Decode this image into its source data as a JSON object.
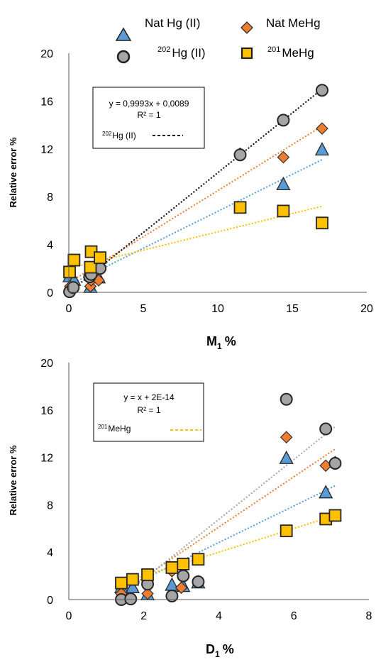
{
  "legend": {
    "nat_hg": "Nat Hg (II)",
    "nat_mehg": "Nat MeHg",
    "hg202_sup": "202",
    "hg202_rest": "Hg (II)",
    "mehg201_sup": "201",
    "mehg201_rest": "MeHg"
  },
  "colors": {
    "nat_hg": "#5b9bd5",
    "nat_mehg": "#ed7d31",
    "hg202": "#a5a5a5",
    "mehg201": "#ffc000",
    "trend_hg202": "#000000",
    "trend_hg202_bottom": "#a5a5a5"
  },
  "chart_data": [
    {
      "type": "scatter",
      "ylabel": "Relative error %",
      "xlabel_main": "M",
      "xlabel_sub": "1",
      "xlabel_unit": "%",
      "xlim": [
        0,
        20
      ],
      "ylim": [
        0,
        20
      ],
      "xticks": [
        "0",
        "5",
        "10",
        "15",
        "20"
      ],
      "yticks": [
        "0",
        "4",
        "8",
        "12",
        "16",
        "20"
      ],
      "annotation": {
        "line1": "y = 0,9993x + 0,0089",
        "line2": "R² = 1",
        "series_sup": "202",
        "series_rest": "Hg (II)"
      },
      "series": [
        {
          "name": "Nat Hg (II)",
          "marker": "triangle",
          "points": [
            [
              0.05,
              1.3
            ],
            [
              0.35,
              1.0
            ],
            [
              1.45,
              0.4
            ],
            [
              1.5,
              1.4
            ],
            [
              2.0,
              1.2
            ],
            [
              14.4,
              9.0
            ],
            [
              17.0,
              11.9
            ]
          ],
          "trend": [
            [
              0,
              0.6
            ],
            [
              17,
              11.1
            ]
          ]
        },
        {
          "name": "Nat MeHg",
          "marker": "diamond",
          "points": [
            [
              0.1,
              0.5
            ],
            [
              1.45,
              0.5
            ],
            [
              1.5,
              1.0
            ],
            [
              2.0,
              1.0
            ],
            [
              11.5,
              11.6
            ],
            [
              14.4,
              11.3
            ],
            [
              17.0,
              13.7
            ]
          ],
          "trend": [
            [
              0,
              0.8
            ],
            [
              17,
              13.9
            ]
          ]
        },
        {
          "name": "202Hg (II)",
          "marker": "circle",
          "points": [
            [
              0.05,
              0.05
            ],
            [
              0.3,
              0.4
            ],
            [
              1.4,
              1.3
            ],
            [
              1.5,
              1.5
            ],
            [
              2.1,
              2.0
            ],
            [
              11.5,
              11.5
            ],
            [
              14.4,
              14.4
            ],
            [
              17.0,
              16.9
            ]
          ],
          "trend": [
            [
              0,
              0.0
            ],
            [
              17,
              17.0
            ]
          ]
        },
        {
          "name": "201MeHg",
          "marker": "square",
          "points": [
            [
              0.05,
              1.7
            ],
            [
              0.35,
              2.7
            ],
            [
              1.5,
              3.4
            ],
            [
              1.45,
              2.1
            ],
            [
              2.1,
              2.9
            ],
            [
              11.5,
              7.1
            ],
            [
              14.4,
              6.8
            ],
            [
              17.0,
              5.8
            ]
          ],
          "trend": [
            [
              0,
              2.0
            ],
            [
              17,
              7.2
            ]
          ]
        }
      ]
    },
    {
      "type": "scatter",
      "ylabel": "Relative error %",
      "xlabel_main": "D",
      "xlabel_sub": "1",
      "xlabel_unit": "%",
      "xlim": [
        0,
        8
      ],
      "ylim": [
        0,
        20
      ],
      "xticks": [
        "0",
        "2",
        "4",
        "6",
        "8"
      ],
      "yticks": [
        "0",
        "4",
        "8",
        "12",
        "16",
        "20"
      ],
      "annotation": {
        "line1": "y = x + 2E-14",
        "line2": "R² = 1",
        "series_sup": "201",
        "series_rest": "MeHg"
      },
      "series": [
        {
          "name": "Nat Hg (II)",
          "marker": "triangle",
          "points": [
            [
              1.4,
              1.0
            ],
            [
              1.7,
              1.0
            ],
            [
              2.1,
              0.4
            ],
            [
              2.75,
              1.2
            ],
            [
              3.05,
              1.1
            ],
            [
              3.45,
              1.4
            ],
            [
              5.8,
              11.9
            ],
            [
              6.85,
              9.0
            ]
          ],
          "trend": [
            [
              1.4,
              0.8
            ],
            [
              7.1,
              9.6
            ]
          ]
        },
        {
          "name": "Nat MeHg",
          "marker": "diamond",
          "points": [
            [
              1.4,
              0.5
            ],
            [
              2.1,
              0.5
            ],
            [
              2.75,
              2.4
            ],
            [
              3.0,
              1.0
            ],
            [
              5.8,
              13.7
            ],
            [
              6.85,
              11.3
            ],
            [
              7.1,
              11.6
            ]
          ],
          "trend": [
            [
              1.4,
              0.6
            ],
            [
              7.1,
              12.7
            ]
          ]
        },
        {
          "name": "202Hg (II)",
          "marker": "circle",
          "points": [
            [
              1.4,
              0.0
            ],
            [
              1.65,
              0.05
            ],
            [
              2.1,
              1.3
            ],
            [
              2.75,
              0.3
            ],
            [
              3.05,
              2.0
            ],
            [
              3.45,
              1.5
            ],
            [
              5.8,
              16.9
            ],
            [
              6.85,
              14.4
            ],
            [
              7.1,
              11.5
            ]
          ],
          "trend": [
            [
              1.4,
              0.2
            ],
            [
              7.1,
              14.6
            ]
          ]
        },
        {
          "name": "201MeHg",
          "marker": "square",
          "points": [
            [
              1.4,
              1.4
            ],
            [
              1.7,
              1.7
            ],
            [
              2.1,
              2.1
            ],
            [
              2.75,
              2.7
            ],
            [
              3.05,
              3.0
            ],
            [
              3.45,
              3.4
            ],
            [
              5.8,
              5.8
            ],
            [
              6.85,
              6.8
            ],
            [
              7.1,
              7.1
            ]
          ],
          "trend": [
            [
              1.4,
              1.4
            ],
            [
              7.1,
              7.1
            ]
          ]
        }
      ]
    }
  ]
}
